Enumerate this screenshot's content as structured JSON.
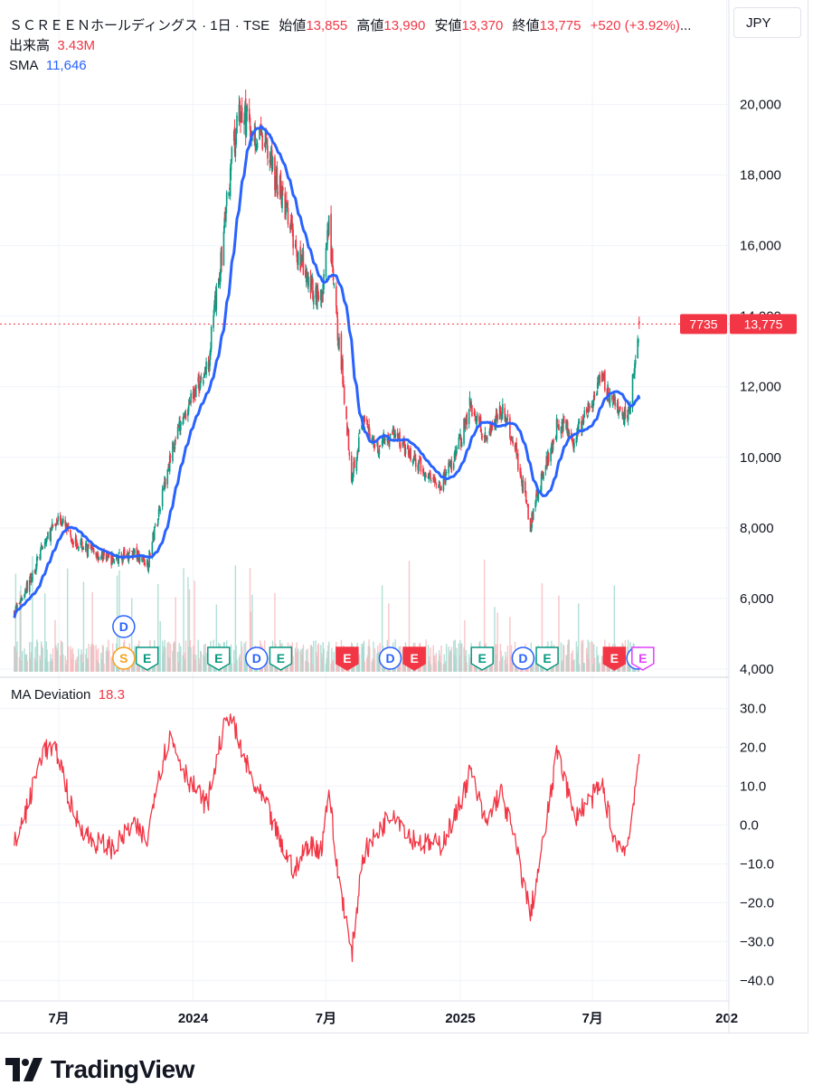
{
  "header": {
    "symbol": "ＳＣＲＥＥＮホールディングス · 1日 · TSE",
    "open_label": "始値",
    "open": "13,855",
    "high_label": "高値",
    "high": "13,990",
    "low_label": "安値",
    "low": "13,370",
    "close_label": "終値",
    "close": "13,775",
    "change": "+520 (+3.92%)",
    "ellipsis": "...",
    "volume_label": "出来高",
    "volume": "3.43M",
    "sma_label": "SMA",
    "sma": "11,646",
    "currency": "JPY"
  },
  "price_badge": {
    "left": "7735",
    "right": "13,775"
  },
  "deviation_legend": {
    "label": "MA Deviation",
    "value": "18.3"
  },
  "brand": {
    "name": "TradingView"
  },
  "colors": {
    "up": "#089981",
    "down": "#f23645",
    "sma": "#2962ff",
    "deviation": "#f23645",
    "grid": "#f0f3fa"
  },
  "chart_data": [
    {
      "type": "candlestick",
      "x_axis": {
        "tick_labels": [
          "7月",
          "2024",
          "7月",
          "2025",
          "7月",
          "202"
        ]
      },
      "y_axis": {
        "tick_labels": [
          "20,000",
          "18,000",
          "16,000",
          "14,000",
          "12,000",
          "10,000",
          "8,000",
          "6,000",
          "4,000"
        ],
        "range": [
          4000,
          20600
        ]
      },
      "last_price": 13775,
      "sma_last": 11646,
      "anchors": [
        [
          "2023-05-01",
          5600
        ],
        [
          "2023-05-20",
          6400
        ],
        [
          "2023-06-10",
          7500
        ],
        [
          "2023-07-01",
          8300
        ],
        [
          "2023-07-20",
          7700
        ],
        [
          "2023-08-15",
          7300
        ],
        [
          "2023-09-15",
          7100
        ],
        [
          "2023-10-10",
          7300
        ],
        [
          "2023-10-31",
          7000
        ],
        [
          "2023-11-10",
          8000
        ],
        [
          "2023-11-30",
          10000
        ],
        [
          "2023-12-25",
          11500
        ],
        [
          "2024-01-20",
          12500
        ],
        [
          "2024-02-08",
          15500
        ],
        [
          "2024-02-20",
          18000
        ],
        [
          "2024-03-05",
          19800
        ],
        [
          "2024-03-25",
          19200
        ],
        [
          "2024-04-10",
          18800
        ],
        [
          "2024-04-30",
          17500
        ],
        [
          "2024-05-20",
          16000
        ],
        [
          "2024-06-05",
          15000
        ],
        [
          "2024-06-25",
          14500
        ],
        [
          "2024-07-05",
          16500
        ],
        [
          "2024-07-15",
          14000
        ],
        [
          "2024-07-25",
          12000
        ],
        [
          "2024-08-05",
          9500
        ],
        [
          "2024-08-20",
          11000
        ],
        [
          "2024-09-10",
          10300
        ],
        [
          "2024-10-01",
          10700
        ],
        [
          "2024-10-25",
          10000
        ],
        [
          "2024-11-15",
          9500
        ],
        [
          "2024-12-05",
          9200
        ],
        [
          "2024-12-25",
          10000
        ],
        [
          "2025-01-15",
          11500
        ],
        [
          "2025-02-05",
          10600
        ],
        [
          "2025-02-25",
          11400
        ],
        [
          "2025-03-15",
          10500
        ],
        [
          "2025-04-07",
          8100
        ],
        [
          "2025-04-25",
          9600
        ],
        [
          "2025-05-15",
          11000
        ],
        [
          "2025-06-05",
          10500
        ],
        [
          "2025-06-25",
          11300
        ],
        [
          "2025-07-15",
          12200
        ],
        [
          "2025-07-30",
          11500
        ],
        [
          "2025-08-10",
          11000
        ],
        [
          "2025-08-20",
          11300
        ],
        [
          "2025-08-27",
          12400
        ],
        [
          "2025-09-03",
          13775
        ]
      ],
      "volume_last": "3.43M",
      "events": [
        {
          "x": "2023-09-28",
          "label": "D",
          "kind": "dividend"
        },
        {
          "x": "2023-09-28",
          "label": "S",
          "kind": "split"
        },
        {
          "x": "2023-10-30",
          "label": "E",
          "kind": "earnings"
        },
        {
          "x": "2024-02-05",
          "label": "E",
          "kind": "earnings"
        },
        {
          "x": "2024-03-28",
          "label": "D",
          "kind": "dividend"
        },
        {
          "x": "2024-04-30",
          "label": "E",
          "kind": "earnings"
        },
        {
          "x": "2024-07-30",
          "label": "E",
          "kind": "earnings-miss"
        },
        {
          "x": "2024-09-27",
          "label": "D",
          "kind": "dividend"
        },
        {
          "x": "2024-10-30",
          "label": "E",
          "kind": "earnings-miss"
        },
        {
          "x": "2025-01-31",
          "label": "E",
          "kind": "earnings"
        },
        {
          "x": "2025-03-28",
          "label": "D",
          "kind": "dividend"
        },
        {
          "x": "2025-04-30",
          "label": "E",
          "kind": "earnings"
        },
        {
          "x": "2025-07-31",
          "label": "E",
          "kind": "earnings-miss"
        },
        {
          "x": "2025-09-01",
          "label": "D",
          "kind": "dividend"
        },
        {
          "x": "2025-09-08",
          "label": "E",
          "kind": "earnings-upcoming"
        }
      ]
    },
    {
      "type": "line",
      "title": "MA Deviation",
      "last_value": 18.3,
      "y_axis": {
        "tick_labels": [
          "30.0",
          "20.0",
          "10.0",
          "0.0",
          "−10.0",
          "−20.0",
          "−30.0",
          "−40.0"
        ],
        "range": [
          -42,
          32
        ]
      },
      "anchors": [
        [
          "2023-05-01",
          -5
        ],
        [
          "2023-05-20",
          5
        ],
        [
          "2023-06-10",
          20
        ],
        [
          "2023-07-01",
          18
        ],
        [
          "2023-07-20",
          3
        ],
        [
          "2023-08-15",
          -4
        ],
        [
          "2023-09-15",
          -6
        ],
        [
          "2023-10-10",
          0
        ],
        [
          "2023-10-31",
          -4
        ],
        [
          "2023-11-10",
          10
        ],
        [
          "2023-11-30",
          23
        ],
        [
          "2023-12-25",
          12
        ],
        [
          "2024-01-20",
          5
        ],
        [
          "2024-02-08",
          22
        ],
        [
          "2024-02-20",
          29
        ],
        [
          "2024-03-05",
          20
        ],
        [
          "2024-03-25",
          10
        ],
        [
          "2024-04-10",
          5
        ],
        [
          "2024-04-30",
          -5
        ],
        [
          "2024-05-20",
          -12
        ],
        [
          "2024-06-05",
          -5
        ],
        [
          "2024-06-25",
          -6
        ],
        [
          "2024-07-05",
          10
        ],
        [
          "2024-07-15",
          -10
        ],
        [
          "2024-07-25",
          -20
        ],
        [
          "2024-08-05",
          -34
        ],
        [
          "2024-08-20",
          -8
        ],
        [
          "2024-09-10",
          -2
        ],
        [
          "2024-10-01",
          4
        ],
        [
          "2024-10-25",
          -3
        ],
        [
          "2024-11-15",
          -5
        ],
        [
          "2024-12-05",
          -5
        ],
        [
          "2024-12-25",
          2
        ],
        [
          "2025-01-15",
          14
        ],
        [
          "2025-02-05",
          0
        ],
        [
          "2025-02-25",
          9
        ],
        [
          "2025-03-15",
          -3
        ],
        [
          "2025-04-07",
          -23
        ],
        [
          "2025-04-25",
          -4
        ],
        [
          "2025-05-15",
          20
        ],
        [
          "2025-06-05",
          2
        ],
        [
          "2025-06-25",
          6
        ],
        [
          "2025-07-15",
          10
        ],
        [
          "2025-07-30",
          -3
        ],
        [
          "2025-08-10",
          -6
        ],
        [
          "2025-08-20",
          -4
        ],
        [
          "2025-08-27",
          8
        ],
        [
          "2025-09-03",
          18.3
        ]
      ]
    }
  ]
}
